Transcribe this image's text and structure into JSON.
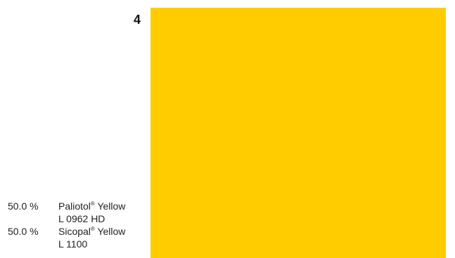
{
  "swatch": {
    "number": "4",
    "color": "#FFCC00"
  },
  "components": [
    {
      "percent": "50.0 %",
      "name": "Paliotol",
      "reg": "®",
      "pigment": " Yellow",
      "code": "L 0962 HD"
    },
    {
      "percent": "50.0 %",
      "name": "Sicopal",
      "reg": "®",
      "pigment": " Yellow",
      "code": "L 1100"
    }
  ]
}
